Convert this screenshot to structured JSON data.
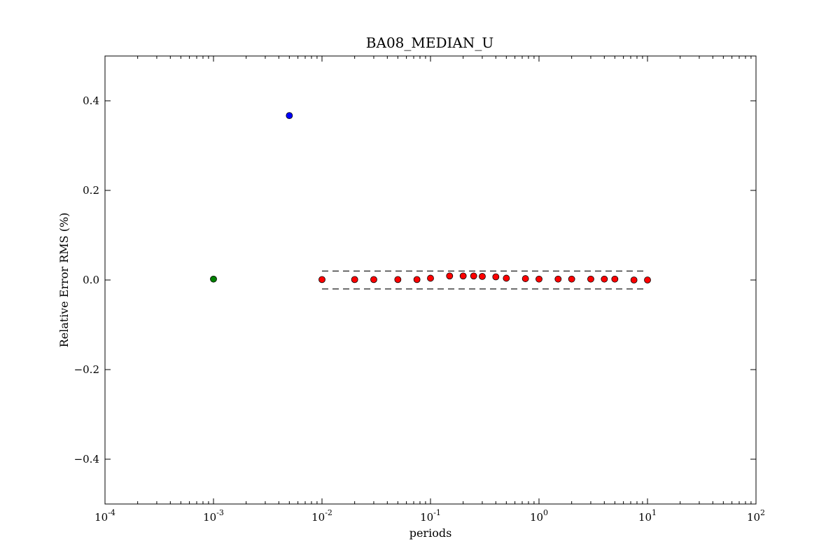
{
  "chart_data": {
    "type": "scatter",
    "title": "BA08_MEDIAN_U",
    "xlabel": "periods",
    "ylabel": "Relative Error RMS (%)",
    "xscale": "log",
    "xlim": [
      0.0001,
      100
    ],
    "ylim": [
      -0.5,
      0.5
    ],
    "x_ticks": [
      {
        "base": "10",
        "exp": "-4",
        "value": 0.0001
      },
      {
        "base": "10",
        "exp": "-3",
        "value": 0.001
      },
      {
        "base": "10",
        "exp": "-2",
        "value": 0.01
      },
      {
        "base": "10",
        "exp": "-1",
        "value": 0.1
      },
      {
        "base": "10",
        "exp": "0",
        "value": 1
      },
      {
        "base": "10",
        "exp": "1",
        "value": 10
      },
      {
        "base": "10",
        "exp": "2",
        "value": 100
      }
    ],
    "y_ticks": [
      {
        "label": "0.4",
        "value": 0.4
      },
      {
        "label": "0.2",
        "value": 0.2
      },
      {
        "label": "0.0",
        "value": 0.0
      },
      {
        "label": "−0.2",
        "value": -0.2
      },
      {
        "label": "−0.4",
        "value": -0.4
      }
    ],
    "grid": false,
    "series": [
      {
        "color": "#0000ff",
        "marker": "circle",
        "points": [
          [
            0.005,
            0.367
          ]
        ]
      },
      {
        "color": "#008000",
        "marker": "circle",
        "points": [
          [
            0.001,
            0.002
          ]
        ]
      },
      {
        "color": "#ff0000",
        "marker": "circle",
        "points": [
          [
            0.01,
            0.001
          ],
          [
            0.02,
            0.001
          ],
          [
            0.03,
            0.001
          ],
          [
            0.05,
            0.001
          ],
          [
            0.075,
            0.001
          ],
          [
            0.1,
            0.004
          ],
          [
            0.15,
            0.009
          ],
          [
            0.2,
            0.009
          ],
          [
            0.25,
            0.009
          ],
          [
            0.3,
            0.008
          ],
          [
            0.4,
            0.007
          ],
          [
            0.5,
            0.004
          ],
          [
            0.75,
            0.003
          ],
          [
            1.0,
            0.002
          ],
          [
            1.5,
            0.002
          ],
          [
            2.0,
            0.002
          ],
          [
            3.0,
            0.002
          ],
          [
            4.0,
            0.002
          ],
          [
            5.0,
            0.002
          ],
          [
            7.5,
            0.0
          ],
          [
            10.0,
            0.0
          ]
        ]
      }
    ],
    "reference_lines": [
      {
        "style": "dashed",
        "color": "#000000",
        "x_range": [
          0.01,
          10
        ],
        "y": 0.02
      },
      {
        "style": "dashed",
        "color": "#000000",
        "x_range": [
          0.01,
          10
        ],
        "y": -0.02
      }
    ]
  }
}
